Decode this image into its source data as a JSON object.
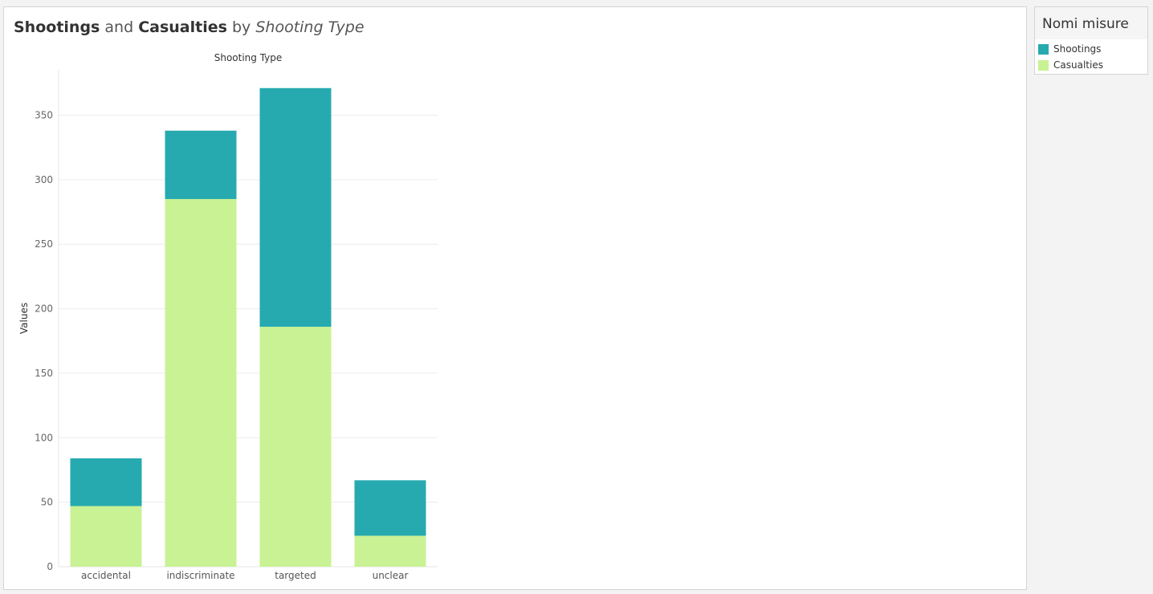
{
  "title": {
    "part1": "Shootings",
    "part2": "and",
    "part3": "Casualties",
    "part4": "by",
    "part5": "Shooting Type"
  },
  "legend": {
    "title": "Nomi misure",
    "items": [
      {
        "label": "Shootings",
        "color": "#26aab0"
      },
      {
        "label": "Casualties",
        "color": "#c9f294"
      }
    ]
  },
  "chart_data": {
    "type": "bar",
    "stacked": true,
    "title": "Shootings and Casualties by Shooting Type",
    "column_header": "Shooting Type",
    "xlabel": "",
    "ylabel": "Values",
    "categories": [
      "accidental",
      "indiscriminate",
      "targeted",
      "unclear"
    ],
    "series": [
      {
        "name": "Casualties",
        "color": "#c9f294",
        "values": [
          47,
          285,
          186,
          24
        ]
      },
      {
        "name": "Shootings",
        "color": "#26aab0",
        "values": [
          37,
          53,
          185,
          43
        ]
      }
    ],
    "yticks": [
      0,
      50,
      100,
      150,
      200,
      250,
      300,
      350
    ],
    "ylim": [
      0,
      372
    ],
    "grid": true,
    "legend_position": "right"
  }
}
